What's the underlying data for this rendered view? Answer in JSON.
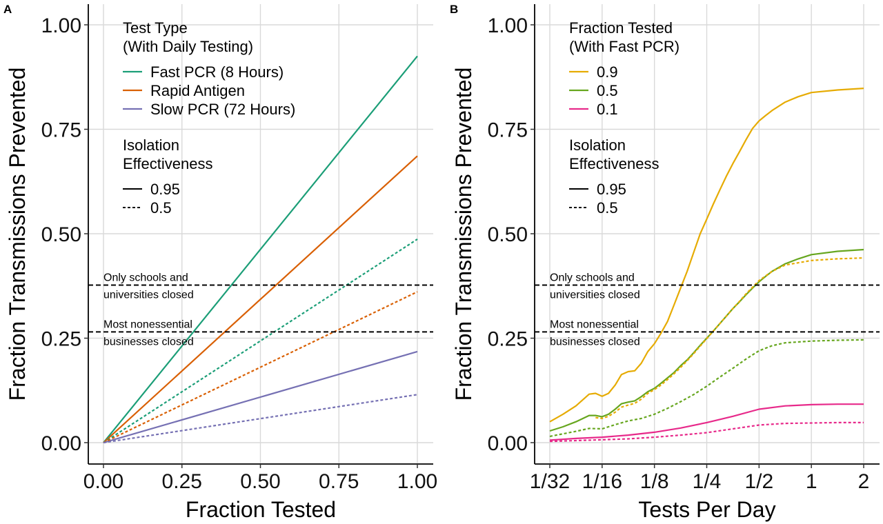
{
  "figure": {
    "panels": [
      {
        "panel_label": "A",
        "legend": {
          "test_title_line1": "Test Type",
          "test_title_line2": "(With Daily Testing)",
          "test_items": [
            {
              "label": "Fast PCR (8 Hours)",
              "color": "#1b9e77"
            },
            {
              "label": "Rapid Antigen",
              "color": "#d95f02"
            },
            {
              "label": "Slow PCR (72 Hours)",
              "color": "#7570b3"
            }
          ],
          "iso_title_line1": "Isolation",
          "iso_title_line2": "Effectiveness",
          "iso_items": [
            {
              "label": "0.95",
              "linestyle": "solid"
            },
            {
              "label": "0.5",
              "linestyle": "dashed"
            }
          ]
        },
        "reference_lines": [
          {
            "value": 0.377,
            "text_line1": "Only schools and",
            "text_line2": "universities closed"
          },
          {
            "value": 0.265,
            "text_line1": "Most nonessential",
            "text_line2": "businesses closed"
          }
        ]
      },
      {
        "panel_label": "B",
        "legend": {
          "test_title_line1": "Fraction Tested",
          "test_title_line2": "(With Fast PCR)",
          "test_items": [
            {
              "label": "0.9",
              "color": "#e6ab02"
            },
            {
              "label": "0.5",
              "color": "#66a61e"
            },
            {
              "label": "0.1",
              "color": "#e7298a"
            }
          ],
          "iso_title_line1": "Isolation",
          "iso_title_line2": "Effectiveness",
          "iso_items": [
            {
              "label": "0.95",
              "linestyle": "solid"
            },
            {
              "label": "0.5",
              "linestyle": "dashed"
            }
          ]
        },
        "reference_lines": [
          {
            "value": 0.377,
            "text_line1": "Only schools and",
            "text_line2": "universities closed"
          },
          {
            "value": 0.265,
            "text_line1": "Most nonessential",
            "text_line2": "businesses closed"
          }
        ]
      }
    ]
  },
  "chart_data": [
    {
      "type": "line",
      "xlabel": "Fraction Tested",
      "ylabel": "Fraction Transmissions Prevented",
      "xlim": [
        0,
        1
      ],
      "ylim": [
        0,
        1
      ],
      "xticks": [
        0,
        0.25,
        0.5,
        0.75,
        1
      ],
      "xtick_labels": [
        "0.00",
        "0.25",
        "0.50",
        "0.75",
        "1.00"
      ],
      "yticks": [
        0,
        0.25,
        0.5,
        0.75,
        1
      ],
      "ytick_labels": [
        "0.00",
        "0.25",
        "0.50",
        "0.75",
        "1.00"
      ],
      "grid": true,
      "series": [
        {
          "name": "Fast PCR (8 Hours)",
          "isolation": "0.95",
          "dashed": false,
          "color": "#1b9e77",
          "x": [
            0,
            1
          ],
          "y": [
            0,
            0.925
          ]
        },
        {
          "name": "Rapid Antigen",
          "isolation": "0.95",
          "dashed": false,
          "color": "#d95f02",
          "x": [
            0,
            1
          ],
          "y": [
            0,
            0.686
          ]
        },
        {
          "name": "Slow PCR (72 Hours)",
          "isolation": "0.95",
          "dashed": false,
          "color": "#7570b3",
          "x": [
            0,
            1
          ],
          "y": [
            0,
            0.218
          ]
        },
        {
          "name": "Fast PCR (8 Hours)",
          "isolation": "0.5",
          "dashed": true,
          "color": "#1b9e77",
          "x": [
            0,
            1
          ],
          "y": [
            0,
            0.487
          ]
        },
        {
          "name": "Rapid Antigen",
          "isolation": "0.5",
          "dashed": true,
          "color": "#d95f02",
          "x": [
            0,
            1
          ],
          "y": [
            0,
            0.361
          ]
        },
        {
          "name": "Slow PCR (72 Hours)",
          "isolation": "0.5",
          "dashed": true,
          "color": "#7570b3",
          "x": [
            0,
            1
          ],
          "y": [
            0,
            0.115
          ]
        }
      ],
      "hlines": [
        0.377,
        0.265
      ]
    },
    {
      "type": "line",
      "xlabel": "Tests Per Day",
      "ylabel": "Fraction Transmissions Prevented",
      "xscale": "log2",
      "xlim": [
        0.02725,
        2.3
      ],
      "ylim": [
        0,
        1
      ],
      "xticks": [
        0.03125,
        0.0625,
        0.125,
        0.25,
        0.5,
        1,
        2
      ],
      "xtick_labels": [
        "1/32",
        "1/16",
        "1/8",
        "1/4",
        "1/2",
        "1",
        "2"
      ],
      "yticks": [
        0,
        0.25,
        0.5,
        0.75,
        1
      ],
      "ytick_labels": [
        "0.00",
        "0.25",
        "0.50",
        "0.75",
        "1.00"
      ],
      "grid": true,
      "series": [
        {
          "name": "0.9",
          "isolation": "0.95",
          "dashed": false,
          "color": "#e6ab02",
          "x": [
            0.03125,
            0.0372,
            0.0442,
            0.0526,
            0.0573,
            0.0625,
            0.068,
            0.0743,
            0.0808,
            0.0883,
            0.0963,
            0.105,
            0.1145,
            0.125,
            0.1364,
            0.1486,
            0.1622,
            0.1768,
            0.1928,
            0.2102,
            0.2292,
            0.25,
            0.2728,
            0.2973,
            0.3243,
            0.3536,
            0.3857,
            0.4204,
            0.4585,
            0.5,
            0.5456,
            0.5947,
            0.7071,
            0.8409,
            1,
            1.4142,
            2
          ],
          "y": [
            0.05,
            0.068,
            0.088,
            0.116,
            0.118,
            0.111,
            0.118,
            0.138,
            0.163,
            0.17,
            0.172,
            0.19,
            0.218,
            0.237,
            0.262,
            0.29,
            0.33,
            0.37,
            0.41,
            0.455,
            0.5,
            0.535,
            0.571,
            0.605,
            0.638,
            0.668,
            0.696,
            0.725,
            0.752,
            0.77,
            0.783,
            0.795,
            0.815,
            0.828,
            0.838,
            0.844,
            0.848
          ]
        },
        {
          "name": "0.5",
          "isolation": "0.95",
          "dashed": false,
          "color": "#66a61e",
          "x": [
            0.03125,
            0.0372,
            0.0442,
            0.0526,
            0.0573,
            0.0625,
            0.068,
            0.0743,
            0.0808,
            0.0883,
            0.0963,
            0.105,
            0.1145,
            0.125,
            0.1364,
            0.1486,
            0.1622,
            0.1768,
            0.1928,
            0.2102,
            0.2292,
            0.25,
            0.2728,
            0.2973,
            0.3243,
            0.3536,
            0.3857,
            0.4204,
            0.4585,
            0.5,
            0.5456,
            0.5947,
            0.7071,
            0.8409,
            1,
            1.4142,
            2
          ],
          "y": [
            0.028,
            0.038,
            0.05,
            0.065,
            0.065,
            0.062,
            0.068,
            0.08,
            0.093,
            0.097,
            0.1,
            0.11,
            0.122,
            0.13,
            0.142,
            0.155,
            0.168,
            0.184,
            0.198,
            0.215,
            0.233,
            0.25,
            0.267,
            0.285,
            0.303,
            0.321,
            0.337,
            0.354,
            0.37,
            0.385,
            0.398,
            0.41,
            0.428,
            0.44,
            0.45,
            0.458,
            0.462
          ]
        },
        {
          "name": "0.1",
          "isolation": "0.95",
          "dashed": false,
          "color": "#e7298a",
          "x": [
            0.03125,
            0.0442,
            0.0625,
            0.0883,
            0.125,
            0.1768,
            0.25,
            0.3536,
            0.5,
            0.7071,
            1,
            1.4142,
            2
          ],
          "y": [
            0.006,
            0.01,
            0.013,
            0.018,
            0.025,
            0.035,
            0.048,
            0.063,
            0.08,
            0.088,
            0.091,
            0.092,
            0.092
          ]
        },
        {
          "name": "0.9",
          "isolation": "0.5",
          "dashed": true,
          "color": "#e6ab02",
          "x": [
            0.0573,
            0.0625,
            0.068,
            0.0743,
            0.0808,
            0.0883,
            0.0963,
            0.105,
            0.1145,
            0.125,
            0.1364,
            0.1486,
            0.1622,
            0.1768,
            0.1928,
            0.2102,
            0.2292,
            0.25,
            0.2728,
            0.2973,
            0.3243,
            0.3536,
            0.3857,
            0.4204,
            0.4585,
            0.5,
            0.5947,
            0.7071,
            1,
            1.4142,
            2
          ],
          "y": [
            0.06,
            0.058,
            0.063,
            0.073,
            0.085,
            0.09,
            0.094,
            0.104,
            0.118,
            0.127,
            0.138,
            0.151,
            0.165,
            0.18,
            0.196,
            0.213,
            0.231,
            0.249,
            0.267,
            0.285,
            0.303,
            0.321,
            0.338,
            0.356,
            0.372,
            0.388,
            0.41,
            0.425,
            0.436,
            0.44,
            0.442
          ]
        },
        {
          "name": "0.5",
          "isolation": "0.5",
          "dashed": true,
          "color": "#66a61e",
          "x": [
            0.03125,
            0.0442,
            0.0526,
            0.0625,
            0.0743,
            0.0883,
            0.105,
            0.125,
            0.1486,
            0.1768,
            0.2102,
            0.25,
            0.2973,
            0.3536,
            0.4204,
            0.5,
            0.5947,
            0.7071,
            1,
            1.4142,
            2
          ],
          "y": [
            0.015,
            0.027,
            0.034,
            0.033,
            0.043,
            0.052,
            0.058,
            0.068,
            0.082,
            0.098,
            0.115,
            0.135,
            0.157,
            0.178,
            0.2,
            0.22,
            0.232,
            0.239,
            0.243,
            0.245,
            0.246
          ]
        },
        {
          "name": "0.1",
          "isolation": "0.5",
          "dashed": true,
          "color": "#e7298a",
          "x": [
            0.03125,
            0.0442,
            0.0625,
            0.0883,
            0.125,
            0.1768,
            0.25,
            0.3536,
            0.5,
            0.7071,
            1,
            1.4142,
            2
          ],
          "y": [
            0.003,
            0.005,
            0.007,
            0.009,
            0.013,
            0.018,
            0.024,
            0.033,
            0.042,
            0.046,
            0.047,
            0.048,
            0.048
          ]
        }
      ],
      "hlines": [
        0.377,
        0.265
      ]
    }
  ]
}
